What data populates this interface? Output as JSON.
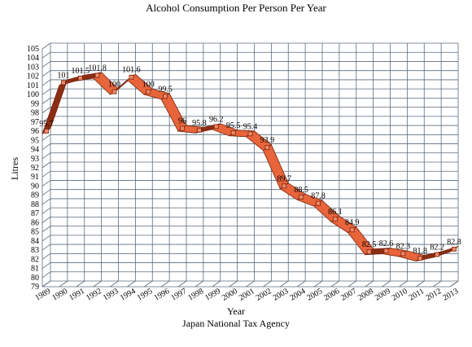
{
  "chart_data": {
    "type": "line",
    "title": "Alcohol Consumption Per Person Per Year",
    "xlabel": "Year",
    "ylabel": "Litres",
    "source": "Japan National Tax Agency",
    "categories": [
      "1989",
      "1990",
      "1991",
      "1992",
      "1993",
      "1994",
      "1995",
      "1996",
      "1997",
      "1998",
      "1999",
      "2000",
      "2001",
      "2002",
      "2003",
      "2004",
      "2005",
      "2006",
      "2007",
      "2008",
      "2009",
      "2010",
      "2011",
      "2012",
      "2013"
    ],
    "series": [
      {
        "values": [
          95.7,
          101,
          101.5,
          101.8,
          100,
          101.6,
          100,
          99.5,
          96,
          95.8,
          96.2,
          95.5,
          95.4,
          93.9,
          89.7,
          88.5,
          87.8,
          86.1,
          84.9,
          82.5,
          82.6,
          82.3,
          81.8,
          82.2,
          82.8
        ],
        "labels": [
          "95.7",
          "101",
          "101.5",
          "101.8",
          "100",
          "101.6",
          "100",
          "99.5",
          "96",
          "95.8",
          "96.2",
          "95.5",
          "95.4",
          "93.9",
          "89.7",
          "88.5",
          "87.8",
          "86.1",
          "84.9",
          "82.5",
          "82.6",
          "82.3",
          "81.8",
          "82.2",
          "82.8"
        ],
        "color": "#e8643a",
        "edge_color": "#7a2610"
      }
    ],
    "ylim": [
      79,
      105
    ],
    "yticks": [
      "79",
      "80",
      "81",
      "82",
      "83",
      "84",
      "85",
      "86",
      "87",
      "88",
      "89",
      "90",
      "91",
      "92",
      "93",
      "94",
      "95",
      "96",
      "97",
      "98",
      "99",
      "100",
      "101",
      "102",
      "103",
      "104",
      "105"
    ],
    "grid": true,
    "style": "3d-ribbon",
    "legend": "none"
  }
}
